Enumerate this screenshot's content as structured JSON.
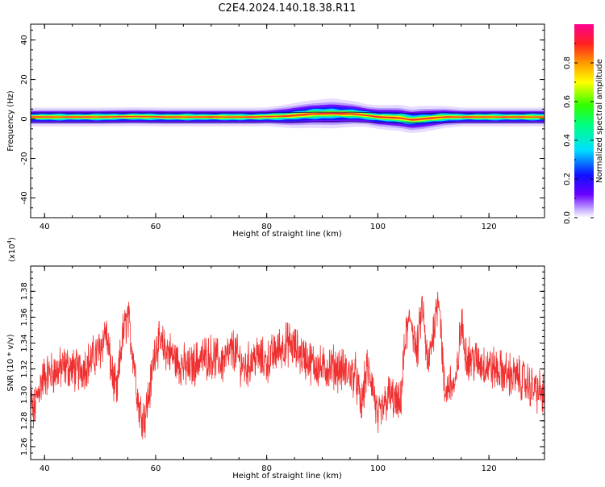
{
  "title": "C2E4.2024.140.18.38.R11",
  "chart_data": [
    {
      "type": "heatmap",
      "xlabel": "Height of straight line (km)",
      "ylabel": "Frequency (Hz)",
      "xlim": [
        37.5,
        130
      ],
      "ylim": [
        -50,
        48
      ],
      "xticks": [
        40,
        60,
        80,
        100,
        120
      ],
      "yticks": [
        -40,
        -20,
        0,
        20,
        40
      ],
      "description_values": {
        "band_center_hz": [
          [
            38,
            1.0
          ],
          [
            45,
            1.0
          ],
          [
            50,
            1.0
          ],
          [
            56,
            1.2
          ],
          [
            62,
            1.0
          ],
          [
            70,
            1.0
          ],
          [
            78,
            1.0
          ],
          [
            84,
            1.5
          ],
          [
            88,
            2.5
          ],
          [
            92,
            2.8
          ],
          [
            96,
            2.5
          ],
          [
            100,
            1.0
          ],
          [
            104,
            0.5
          ],
          [
            106,
            -0.5
          ],
          [
            108,
            0.0
          ],
          [
            112,
            1.0
          ],
          [
            116,
            1.0
          ],
          [
            122,
            1.0
          ],
          [
            130,
            1.0
          ]
        ],
        "band_halfwidth_hz": [
          [
            38,
            2.5
          ],
          [
            50,
            2.5
          ],
          [
            60,
            2.5
          ],
          [
            80,
            2.5
          ],
          [
            86,
            3.5
          ],
          [
            92,
            4.0
          ],
          [
            98,
            3.0
          ],
          [
            104,
            3.5
          ],
          [
            108,
            3.5
          ],
          [
            115,
            2.5
          ],
          [
            130,
            2.5
          ]
        ]
      },
      "colorbar": {
        "label": "Normalized spectral amplitude",
        "ticks": [
          0.0,
          0.2,
          0.4,
          0.6,
          0.8
        ],
        "range": [
          0,
          1
        ]
      }
    },
    {
      "type": "line",
      "xlabel": "Height of straight line (km)",
      "ylabel": "SNR (10 * v/v)",
      "multiplier": "(x10",
      "multiplier_exp": "4",
      "multiplier_close": ")",
      "xlim": [
        37.5,
        130
      ],
      "ylim": [
        1.25,
        1.3995
      ],
      "xticks": [
        40,
        60,
        80,
        100,
        120
      ],
      "yticks": [
        1.26,
        1.28,
        1.3,
        1.32,
        1.34,
        1.36,
        1.38
      ],
      "color": "#f03030",
      "series": [
        {
          "x": [
            37.5,
            38,
            39,
            40,
            42,
            44,
            46,
            48,
            50,
            51,
            52,
            53,
            54,
            55,
            56,
            57,
            58,
            59,
            60,
            62,
            64,
            66,
            68,
            70,
            72,
            74,
            76,
            78,
            80,
            82,
            84,
            86,
            88,
            90,
            92,
            94,
            96,
            97,
            98,
            99,
            100,
            101,
            102,
            103,
            104,
            105,
            106,
            107,
            108,
            109,
            110,
            111,
            112,
            113,
            114,
            115,
            116,
            118,
            120,
            122,
            124,
            126,
            128,
            130
          ],
          "y": [
            1.3,
            1.285,
            1.305,
            1.315,
            1.318,
            1.322,
            1.318,
            1.325,
            1.335,
            1.35,
            1.32,
            1.3,
            1.345,
            1.36,
            1.33,
            1.29,
            1.282,
            1.305,
            1.34,
            1.335,
            1.325,
            1.32,
            1.328,
            1.33,
            1.325,
            1.335,
            1.32,
            1.33,
            1.325,
            1.335,
            1.34,
            1.332,
            1.325,
            1.32,
            1.322,
            1.318,
            1.315,
            1.29,
            1.32,
            1.31,
            1.28,
            1.29,
            1.3,
            1.295,
            1.29,
            1.345,
            1.36,
            1.33,
            1.37,
            1.32,
            1.35,
            1.38,
            1.3,
            1.31,
            1.305,
            1.355,
            1.33,
            1.325,
            1.322,
            1.318,
            1.315,
            1.312,
            1.305,
            1.3
          ]
        }
      ]
    }
  ]
}
